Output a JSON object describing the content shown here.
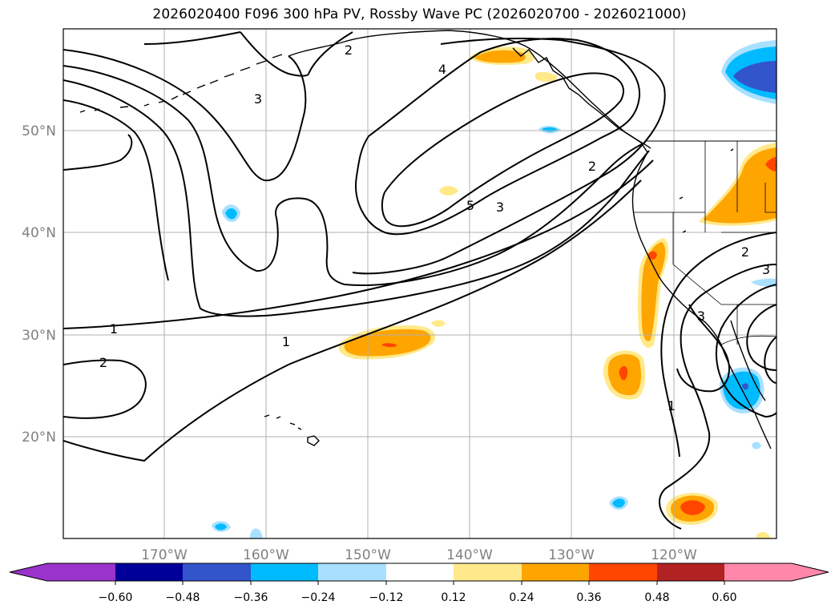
{
  "title": "2026020400 F096 300 hPa PV, Rossby Wave PC (2026020700 - 2026021000)",
  "lat_labels": [
    "50°N",
    "40°N",
    "30°N",
    "20°N"
  ],
  "lon_labels": [
    "170°W",
    "160°W",
    "150°W",
    "140°W",
    "130°W",
    "120°W"
  ],
  "contour_labels": [
    "1",
    "1",
    "1",
    "2",
    "2",
    "2",
    "2",
    "3",
    "3",
    "3",
    "3",
    "4",
    "5"
  ],
  "colorbar": {
    "ticks": [
      "−0.60",
      "−0.48",
      "−0.36",
      "−0.24",
      "−0.12",
      "0.12",
      "0.24",
      "0.36",
      "0.48",
      "0.60"
    ],
    "colors": {
      "under": "#9933cc",
      "lt_m060": "#000099",
      "m048": "#3355cc",
      "m036": "#00bbff",
      "m024": "#aae0ff",
      "zero": "#ffffff",
      "p012": "#ffe98a",
      "p024": "#ffa500",
      "p036": "#ff4500",
      "p048": "#b22222",
      "over": "#ff88aa"
    }
  }
}
